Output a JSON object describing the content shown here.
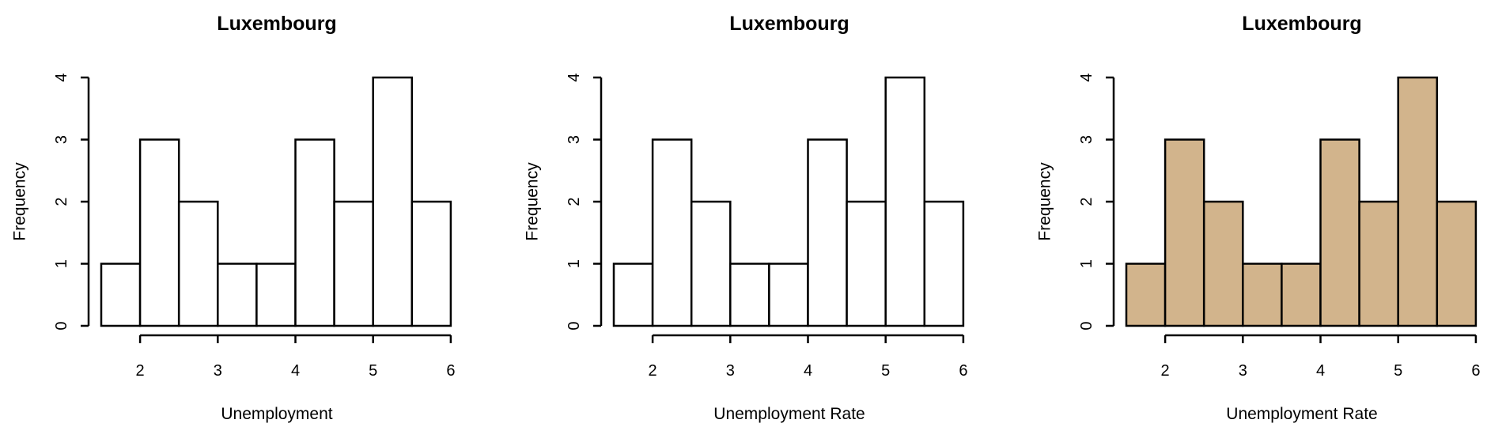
{
  "chart_data": [
    {
      "type": "bar",
      "subtype": "histogram",
      "title": "Luxembourg",
      "xlabel": "Unemployment",
      "ylabel": "Frequency",
      "bins": [
        [
          1.5,
          2.0
        ],
        [
          2.0,
          2.5
        ],
        [
          2.5,
          3.0
        ],
        [
          3.0,
          3.5
        ],
        [
          3.5,
          4.0
        ],
        [
          4.0,
          4.5
        ],
        [
          4.5,
          5.0
        ],
        [
          5.0,
          5.5
        ],
        [
          5.5,
          6.0
        ]
      ],
      "values": [
        1,
        3,
        2,
        1,
        1,
        3,
        2,
        4,
        2
      ],
      "xlim": [
        1.5,
        6.0
      ],
      "ylim": [
        0,
        4
      ],
      "xticks": [
        2,
        3,
        4,
        5,
        6
      ],
      "yticks": [
        0,
        1,
        2,
        3,
        4
      ],
      "fill": "#ffffff",
      "grid": false
    },
    {
      "type": "bar",
      "subtype": "histogram",
      "title": "Luxembourg",
      "xlabel": "Unemployment Rate",
      "ylabel": "Frequency",
      "bins": [
        [
          1.5,
          2.0
        ],
        [
          2.0,
          2.5
        ],
        [
          2.5,
          3.0
        ],
        [
          3.0,
          3.5
        ],
        [
          3.5,
          4.0
        ],
        [
          4.0,
          4.5
        ],
        [
          4.5,
          5.0
        ],
        [
          5.0,
          5.5
        ],
        [
          5.5,
          6.0
        ]
      ],
      "values": [
        1,
        3,
        2,
        1,
        1,
        3,
        2,
        4,
        2
      ],
      "xlim": [
        1.5,
        6.0
      ],
      "ylim": [
        0,
        4
      ],
      "xticks": [
        2,
        3,
        4,
        5,
        6
      ],
      "yticks": [
        0,
        1,
        2,
        3,
        4
      ],
      "fill": "#ffffff",
      "grid": false
    },
    {
      "type": "bar",
      "subtype": "histogram",
      "title": "Luxembourg",
      "xlabel": "Unemployment Rate",
      "ylabel": "Frequency",
      "bins": [
        [
          1.5,
          2.0
        ],
        [
          2.0,
          2.5
        ],
        [
          2.5,
          3.0
        ],
        [
          3.0,
          3.5
        ],
        [
          3.5,
          4.0
        ],
        [
          4.0,
          4.5
        ],
        [
          4.5,
          5.0
        ],
        [
          5.0,
          5.5
        ],
        [
          5.5,
          6.0
        ]
      ],
      "values": [
        1,
        3,
        2,
        1,
        1,
        3,
        2,
        4,
        2
      ],
      "xlim": [
        1.5,
        6.0
      ],
      "ylim": [
        0,
        4
      ],
      "xticks": [
        2,
        3,
        4,
        5,
        6
      ],
      "yticks": [
        0,
        1,
        2,
        3,
        4
      ],
      "fill": "#d2b48c",
      "grid": false
    }
  ]
}
